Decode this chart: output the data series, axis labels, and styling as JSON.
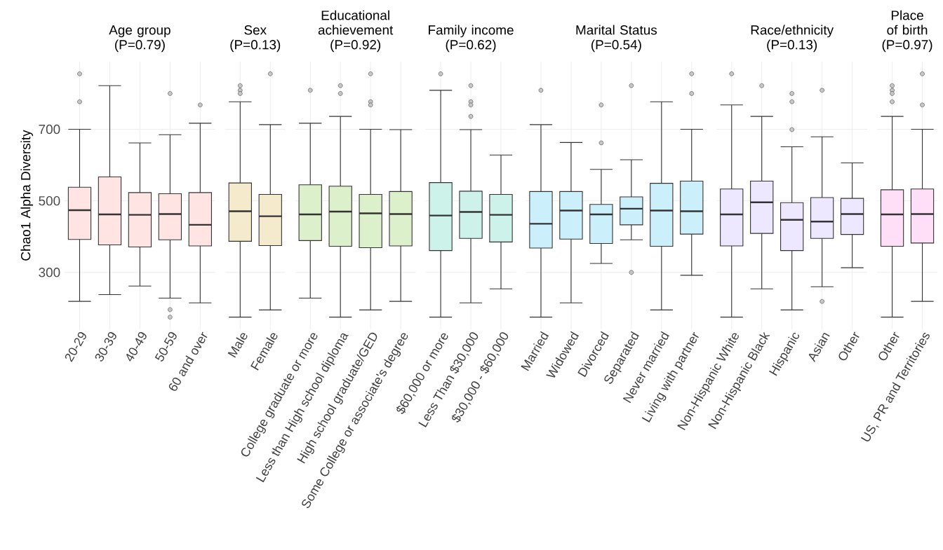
{
  "chart_data": [
    {
      "type": "box",
      "title": "Age group",
      "subtitle": "(P=0.79)",
      "ylabel": "Chao1 Alpha Diversity",
      "color": "#fee4e2",
      "ylim": [
        141,
        889
      ],
      "yticks": [
        300,
        500,
        700
      ],
      "grid": true,
      "categories": [
        "20-29",
        "30-39",
        "40-49",
        "50-59",
        "60 and over"
      ],
      "boxes": [
        {
          "low": 219,
          "q1": 392,
          "median": 474,
          "q3": 538,
          "high": 700,
          "outliers": [
            855,
            777
          ]
        },
        {
          "low": 238,
          "q1": 377,
          "median": 462,
          "q3": 567,
          "high": 822
        },
        {
          "low": 262,
          "q1": 371,
          "median": 461,
          "q3": 523,
          "high": 662
        },
        {
          "low": 228,
          "q1": 391,
          "median": 463,
          "q3": 520,
          "high": 685,
          "outliers": [
            800,
            196,
            175
          ]
        },
        {
          "low": 215,
          "q1": 374,
          "median": 433,
          "q3": 523,
          "high": 717,
          "outliers": [
            768
          ]
        }
      ]
    },
    {
      "type": "box",
      "title": "Sex",
      "subtitle": "(P=0.13)",
      "color": "#f3ebcc",
      "ylim": [
        141,
        889
      ],
      "yticks": [
        300,
        500,
        700
      ],
      "grid": true,
      "tick_labels": "x",
      "categories": [
        "Male",
        "Female"
      ],
      "boxes": [
        {
          "low": 175,
          "q1": 387,
          "median": 471,
          "q3": 550,
          "high": 777,
          "outliers": [
            822,
            809,
            800
          ]
        },
        {
          "low": 195,
          "q1": 375,
          "median": 457,
          "q3": 518,
          "high": 713,
          "outliers": [
            855
          ]
        }
      ]
    },
    {
      "type": "box",
      "title": "Educational achievement",
      "subtitle": "(P=0.92)",
      "color": "#ddf0cc",
      "ylim": [
        141,
        889
      ],
      "yticks": [
        300,
        500,
        700
      ],
      "grid": true,
      "tick_labels": "x",
      "categories": [
        "College graduate or more",
        "Less than High school diploma",
        "High school graduate/GED",
        "Some College or associate's degree"
      ],
      "boxes": [
        {
          "low": 228,
          "q1": 389,
          "median": 462,
          "q3": 545,
          "high": 717,
          "outliers": [
            809
          ]
        },
        {
          "low": 175,
          "q1": 373,
          "median": 470,
          "q3": 541,
          "high": 736,
          "outliers": [
            822,
            800
          ]
        },
        {
          "low": 195,
          "q1": 369,
          "median": 465,
          "q3": 518,
          "high": 700,
          "outliers": [
            855,
            777,
            768
          ]
        },
        {
          "low": 219,
          "q1": 374,
          "median": 463,
          "q3": 526,
          "high": 699
        }
      ]
    },
    {
      "type": "box",
      "title": "Family income",
      "subtitle": "(P=0.62)",
      "color": "#ccf2ea",
      "ylim": [
        141,
        889
      ],
      "yticks": [
        300,
        500,
        700
      ],
      "grid": true,
      "tick_labels": "x",
      "categories": [
        "$60,000 or more",
        "Less Than $30,000",
        "$30,000 - $60,000"
      ],
      "boxes": [
        {
          "low": 175,
          "q1": 361,
          "median": 459,
          "q3": 551,
          "high": 809,
          "outliers": [
            855
          ]
        },
        {
          "low": 215,
          "q1": 395,
          "median": 469,
          "q3": 527,
          "high": 699,
          "outliers": [
            822,
            777,
            768,
            736
          ]
        },
        {
          "low": 254,
          "q1": 385,
          "median": 461,
          "q3": 518,
          "high": 628
        }
      ]
    },
    {
      "type": "box",
      "title": "Marital Status",
      "subtitle": "(P=0.54)",
      "color": "#ccf0fb",
      "ylim": [
        141,
        889
      ],
      "yticks": [
        300,
        500,
        700
      ],
      "grid": true,
      "tick_labels": "x",
      "categories": [
        "Married",
        "Widowed",
        "Divorced",
        "Separated",
        "Never married",
        "Living with partner"
      ],
      "boxes": [
        {
          "low": 175,
          "q1": 368,
          "median": 436,
          "q3": 526,
          "high": 713,
          "outliers": [
            809
          ]
        },
        {
          "low": 215,
          "q1": 393,
          "median": 473,
          "q3": 526,
          "high": 663
        },
        {
          "low": 325,
          "q1": 381,
          "median": 462,
          "q3": 490,
          "high": 588,
          "outliers": [
            768,
            662
          ]
        },
        {
          "low": 391,
          "q1": 433,
          "median": 478,
          "q3": 511,
          "high": 615,
          "outliers": [
            822,
            300
          ]
        },
        {
          "low": 195,
          "q1": 373,
          "median": 473,
          "q3": 549,
          "high": 777
        },
        {
          "low": 292,
          "q1": 407,
          "median": 471,
          "q3": 555,
          "high": 700,
          "outliers": [
            855,
            800
          ]
        }
      ]
    },
    {
      "type": "box",
      "title": "Race/ethnicity",
      "subtitle": "(P=0.13)",
      "color": "#ede8ff",
      "ylim": [
        141,
        889
      ],
      "yticks": [
        300,
        500,
        700
      ],
      "grid": true,
      "tick_labels": "x",
      "categories": [
        "Non-Hispanic White",
        "Non-Hispanic Black",
        "Hispanic",
        "Asian",
        "Other"
      ],
      "boxes": [
        {
          "low": 175,
          "q1": 374,
          "median": 462,
          "q3": 533,
          "high": 768,
          "outliers": [
            855
          ]
        },
        {
          "low": 254,
          "q1": 409,
          "median": 496,
          "q3": 555,
          "high": 736,
          "outliers": [
            822
          ]
        },
        {
          "low": 195,
          "q1": 361,
          "median": 447,
          "q3": 495,
          "high": 651,
          "outliers": [
            800,
            777,
            699
          ]
        },
        {
          "low": 260,
          "q1": 395,
          "median": 442,
          "q3": 509,
          "high": 679,
          "outliers": [
            809,
            219
          ]
        },
        {
          "low": 313,
          "q1": 406,
          "median": 463,
          "q3": 507,
          "high": 606
        }
      ]
    },
    {
      "type": "box",
      "title": "Place of birth",
      "subtitle": "(P=0.97)",
      "color": "#fedff7",
      "ylim": [
        141,
        889
      ],
      "yticks": [
        300,
        500,
        700
      ],
      "grid": true,
      "tick_labels": "x",
      "categories": [
        "Other",
        "US, PR and Territories"
      ],
      "boxes": [
        {
          "low": 175,
          "q1": 373,
          "median": 462,
          "q3": 531,
          "high": 736,
          "outliers": [
            822,
            809,
            800,
            777
          ]
        },
        {
          "low": 219,
          "q1": 382,
          "median": 463,
          "q3": 533,
          "high": 700,
          "outliers": [
            855,
            768
          ]
        }
      ]
    }
  ]
}
